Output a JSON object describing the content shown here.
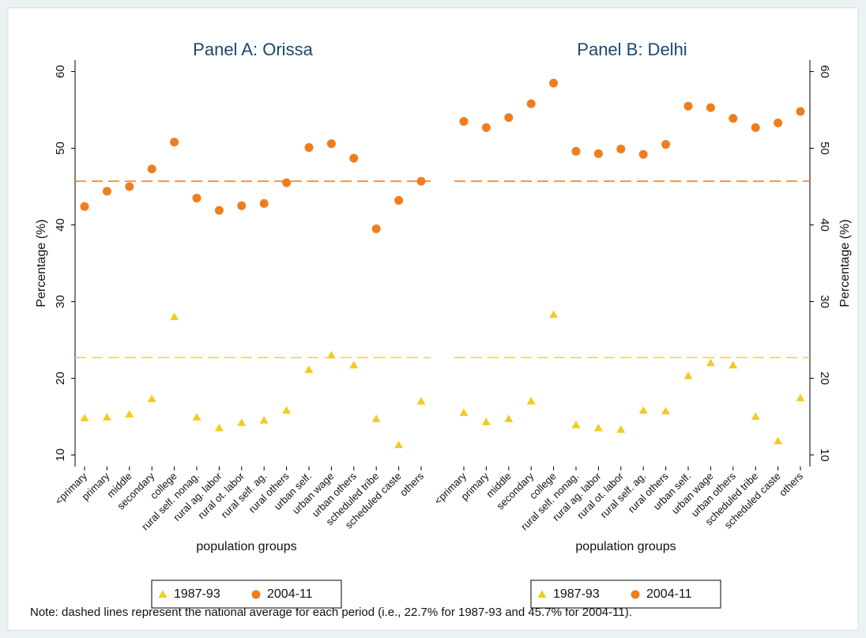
{
  "chart_data": [
    {
      "type": "scatter",
      "title": "Panel A: Orissa",
      "x_label": "population groups",
      "y_label": "Percentage (%)",
      "y_axis_side": "left",
      "categories": [
        "<primary",
        "primary",
        "middle",
        "secondary",
        "college",
        "rural self. nonag.",
        "rural ag. labor",
        "rural ot. labor",
        "rural self. ag.",
        "rural others",
        "urban self.",
        "urban wage",
        "urban others",
        "scheduled tribe",
        "scheduled caste",
        "others"
      ],
      "series": [
        {
          "name": "1987-93",
          "color": "#f2cc1d",
          "marker": "triangle",
          "values": [
            14.8,
            14.9,
            15.3,
            17.3,
            28.0,
            14.9,
            13.5,
            14.2,
            14.5,
            15.8,
            21.1,
            23.0,
            21.7,
            14.7,
            11.3,
            17.0
          ]
        },
        {
          "name": "2004-11",
          "color": "#ef7d1e",
          "marker": "circle",
          "values": [
            42.4,
            44.4,
            45.0,
            47.3,
            50.8,
            43.5,
            41.9,
            42.5,
            42.8,
            45.5,
            50.1,
            50.6,
            48.7,
            39.5,
            43.2,
            45.7
          ]
        }
      ],
      "reference_lines": [
        {
          "value": 22.7,
          "color": "#f5d43c"
        },
        {
          "value": 45.7,
          "color": "#f0842c"
        }
      ],
      "ylim": [
        8.5,
        61.5
      ],
      "yticks": [
        10,
        20,
        30,
        40,
        50,
        60
      ]
    },
    {
      "type": "scatter",
      "title": "Panel B: Delhi",
      "x_label": "population groups",
      "y_label": "Percentage (%)",
      "y_axis_side": "right",
      "categories": [
        "<primary",
        "primary",
        "middle",
        "secondary",
        "college",
        "rural self. nonag.",
        "rural ag. labor",
        "rural ot. labor",
        "rural self. ag.",
        "rural others",
        "urban self.",
        "urban wage",
        "urban others",
        "scheduled tribe",
        "scheduled caste",
        "others"
      ],
      "series": [
        {
          "name": "1987-93",
          "color": "#f2cc1d",
          "marker": "triangle",
          "values": [
            15.5,
            14.3,
            14.7,
            17.0,
            28.3,
            13.9,
            13.5,
            13.3,
            15.8,
            15.7,
            20.3,
            22.0,
            21.7,
            15.0,
            11.8,
            17.4
          ]
        },
        {
          "name": "2004-11",
          "color": "#ef7d1e",
          "marker": "circle",
          "values": [
            53.5,
            52.7,
            54.0,
            55.8,
            58.5,
            49.6,
            49.3,
            49.9,
            49.2,
            50.5,
            55.5,
            55.3,
            53.9,
            52.7,
            53.3,
            54.8
          ]
        }
      ],
      "reference_lines": [
        {
          "value": 22.7,
          "color": "#f5d43c"
        },
        {
          "value": 45.7,
          "color": "#f0842c"
        }
      ],
      "ylim": [
        8.5,
        61.5
      ],
      "yticks": [
        10,
        20,
        30,
        40,
        50,
        60
      ]
    }
  ],
  "note": "Note: dashed lines represent the national average for each period (i.e., 22.7% for 1987-93 and 45.7% for 2004-11)."
}
